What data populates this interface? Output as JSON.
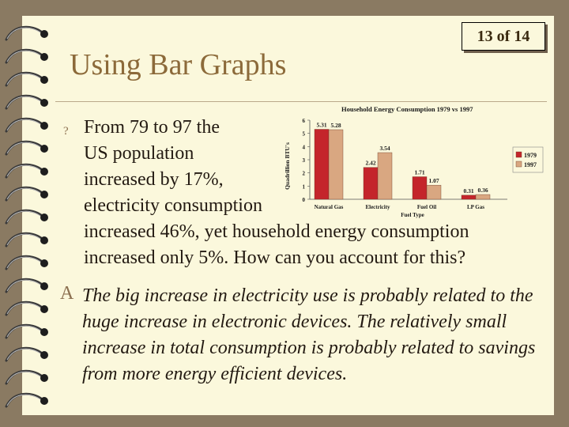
{
  "slide": {
    "page_label": "13 of 14",
    "title": "Using Bar Graphs"
  },
  "question": {
    "marker": "?",
    "lines": [
      "From 79 to 97 the",
      "US population",
      "increased by 17%,",
      "electricity consumption",
      "increased 46%, yet household energy consumption",
      "increased only 5%.  How can you account for this?"
    ]
  },
  "answer": {
    "marker": "A",
    "text": "The big increase in electricity use is probably related to the huge increase in electronic devices.  The relatively small increase in total consumption is probably related to savings from more energy efficient devices."
  },
  "colors": {
    "paper": "#fbf8dc",
    "title": "#8c6a3a",
    "series_1979": "#c4252b",
    "series_1997": "#d9a781"
  },
  "chart_data": {
    "type": "bar",
    "title": "Household Energy Consumption 1979 vs 1997",
    "xlabel": "Fuel Type",
    "ylabel": "Quadrillion BTU's",
    "categories": [
      "Natural Gas",
      "Electricity",
      "Fuel Oil",
      "LP Gas"
    ],
    "series": [
      {
        "name": "1979",
        "values": [
          5.31,
          2.42,
          1.71,
          0.31
        ],
        "labels": [
          "5.31",
          "2.42",
          "1.71",
          "0.31"
        ]
      },
      {
        "name": "1997",
        "values": [
          5.28,
          3.54,
          1.07,
          0.36
        ],
        "labels": [
          "5.28",
          "3.54",
          "1.07",
          "0.36"
        ]
      }
    ],
    "y_ticks": [
      "0",
      "1",
      "2",
      "3",
      "4",
      "5",
      "6"
    ],
    "ylim": [
      0,
      6
    ],
    "legend": "right",
    "grid": false
  }
}
